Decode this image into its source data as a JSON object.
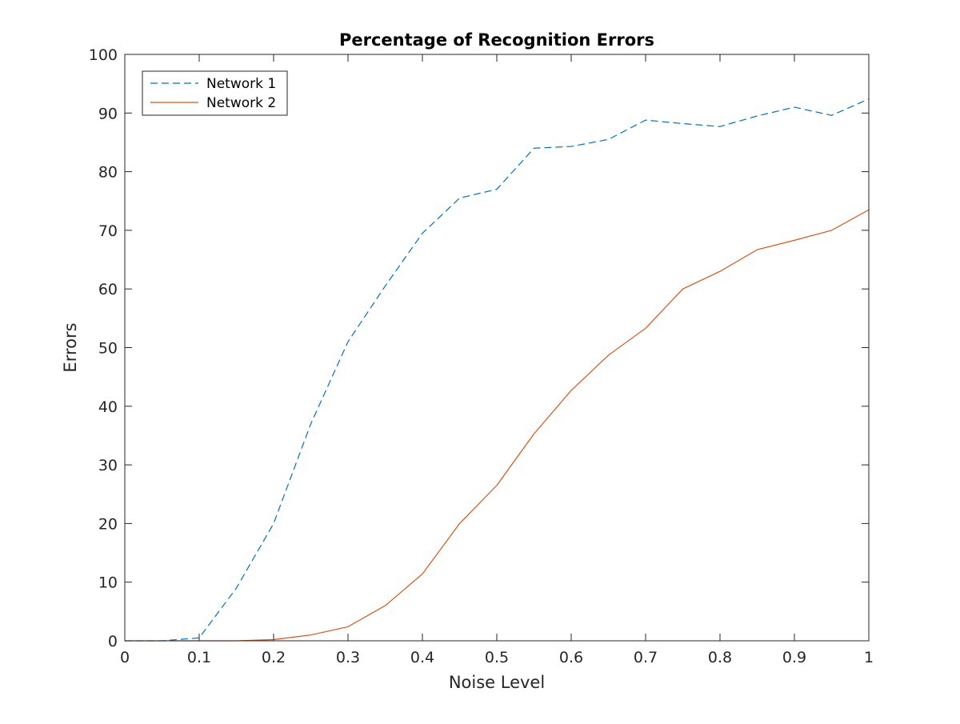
{
  "chart_data": {
    "type": "line",
    "title": "Percentage of Recognition Errors",
    "xlabel": "Noise Level",
    "ylabel": "Errors",
    "xlim": [
      0,
      1
    ],
    "ylim": [
      0,
      100
    ],
    "x_ticks": [
      0,
      0.1,
      0.2,
      0.3,
      0.4,
      0.5,
      0.6,
      0.7,
      0.8,
      0.9,
      1
    ],
    "x_tick_labels": [
      "0",
      "0.1",
      "0.2",
      "0.3",
      "0.4",
      "0.5",
      "0.6",
      "0.7",
      "0.8",
      "0.9",
      "1"
    ],
    "y_ticks": [
      0,
      10,
      20,
      30,
      40,
      50,
      60,
      70,
      80,
      90,
      100
    ],
    "y_tick_labels": [
      "0",
      "10",
      "20",
      "30",
      "40",
      "50",
      "60",
      "70",
      "80",
      "90",
      "100"
    ],
    "grid": false,
    "box": true,
    "legend_position": "top-left",
    "x": [
      0,
      0.05,
      0.1,
      0.15,
      0.2,
      0.25,
      0.3,
      0.35,
      0.4,
      0.45,
      0.5,
      0.55,
      0.6,
      0.65,
      0.7,
      0.75,
      0.8,
      0.85,
      0.9,
      0.95,
      1
    ],
    "series": [
      {
        "name": "Network 1",
        "color": "#0072BD",
        "line_style": "dashed",
        "values": [
          0,
          0,
          0.5,
          9,
          20,
          37,
          51,
          60.5,
          69.5,
          75.5,
          77,
          84,
          84.3,
          85.5,
          88.8,
          88.2,
          87.7,
          89.5,
          91,
          89.6,
          92.4
        ]
      },
      {
        "name": "Network 2",
        "color": "#D95319",
        "line_style": "solid",
        "values": [
          0,
          0,
          0,
          0,
          0.2,
          1,
          2.4,
          6,
          11.4,
          20,
          26.5,
          35.3,
          42.7,
          48.7,
          53.3,
          60,
          63,
          66.7,
          68.3,
          70,
          73.5
        ]
      }
    ]
  }
}
